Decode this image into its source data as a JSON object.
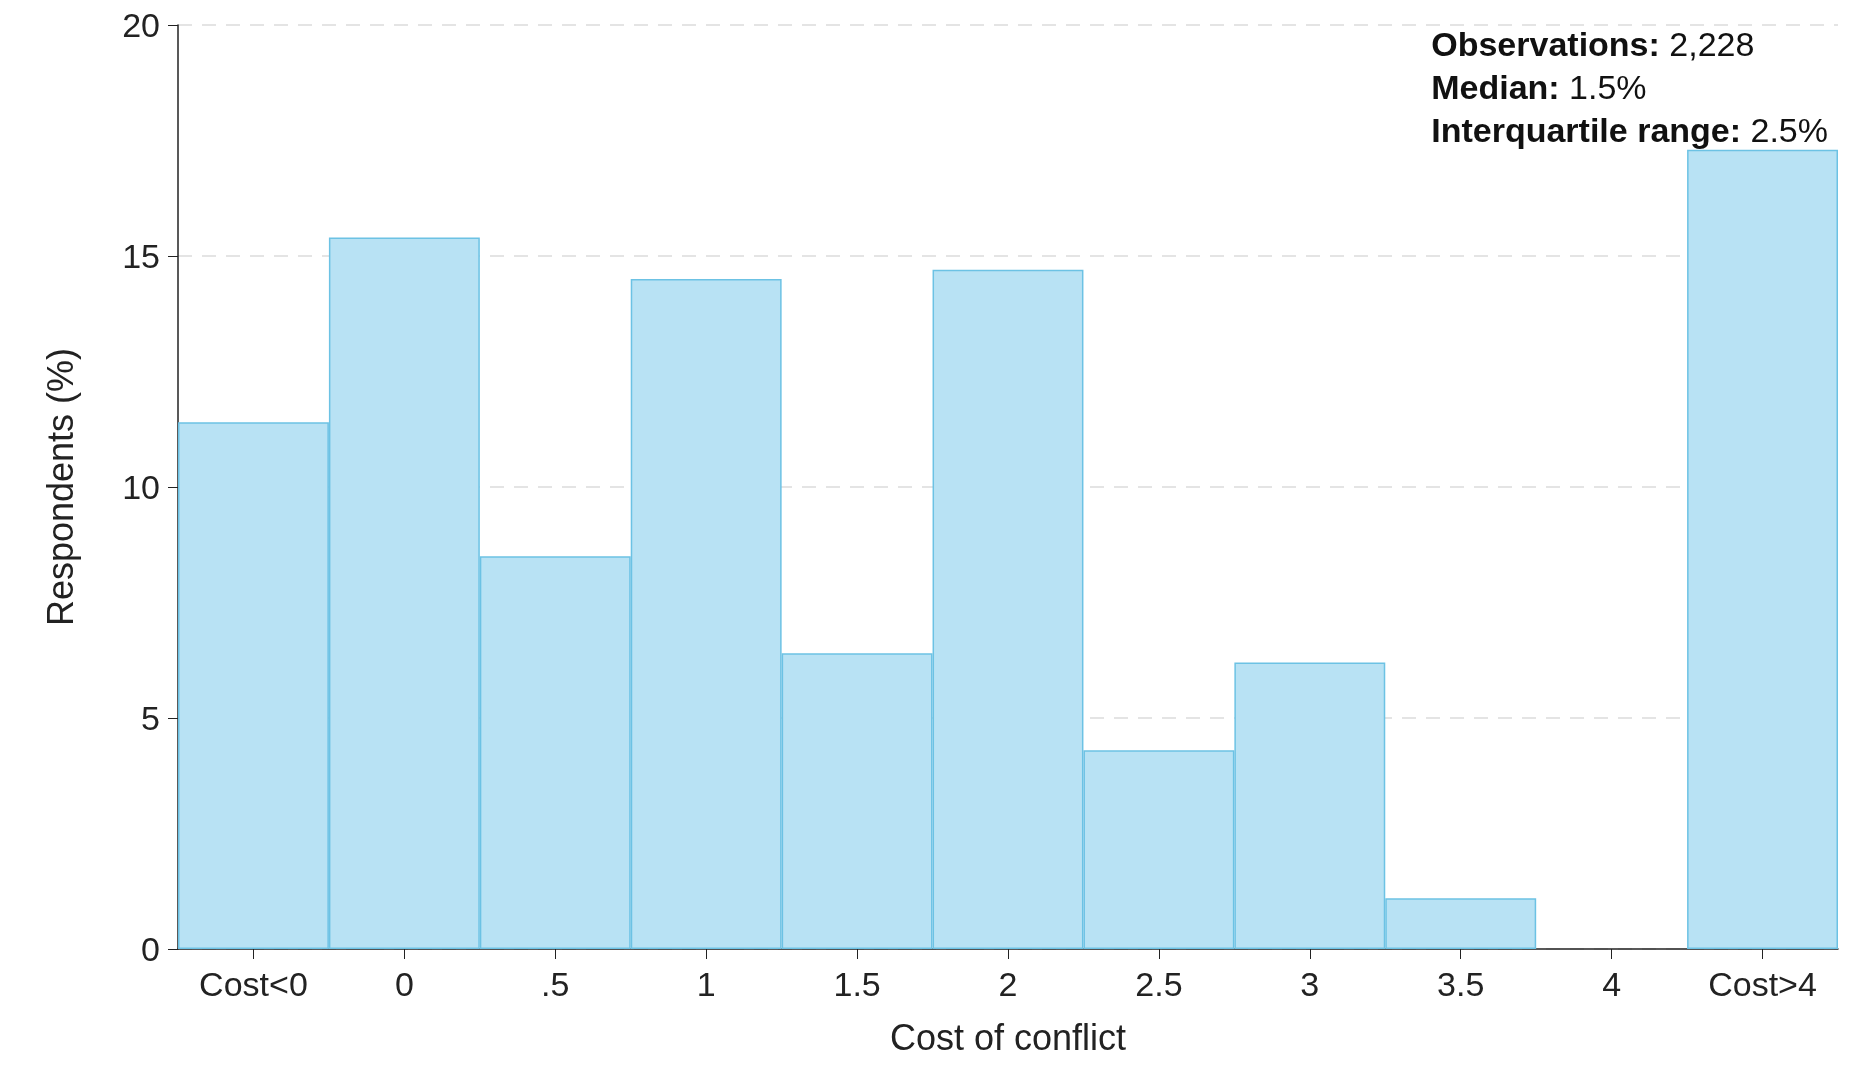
{
  "chart_data": {
    "type": "bar",
    "xlabel": "Cost of conflict",
    "ylabel": "Respondents (%)",
    "categories": [
      "Cost<0",
      "0",
      ".5",
      "1",
      "1.5",
      "2",
      "2.5",
      "3",
      "3.5",
      "4",
      "Cost>4"
    ],
    "values": [
      11.4,
      15.4,
      8.5,
      14.5,
      6.4,
      14.7,
      4.3,
      6.2,
      1.1,
      null,
      17.3
    ],
    "color": "#b8e2f4",
    "ylim": [
      0,
      20
    ],
    "yticks": [
      0,
      5,
      10,
      15,
      20
    ],
    "grid": "y",
    "annotations": [
      "Observations: 2,228",
      "Median: 1.5%",
      "Interquartile range: 2.5%"
    ]
  }
}
